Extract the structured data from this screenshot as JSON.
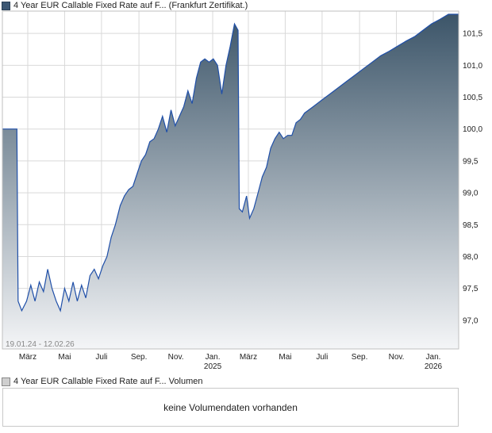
{
  "legend": {
    "price_label": "4 Year EUR Callable Fixed Rate auf F... (Frankfurt Zertifikat.)",
    "volume_label": "4 Year EUR Callable Fixed Rate auf F... Volumen"
  },
  "volume_panel": {
    "message": "keine Volumendaten vorhanden"
  },
  "range_label": "19.01.24 - 12.02.26",
  "colors": {
    "line": "#1f4fa8",
    "fill_top": "#3c5569",
    "fill_bottom": "#f4f5f7",
    "grid": "#d9d9d9"
  },
  "chart_data": {
    "type": "area",
    "xlabel": "",
    "ylabel": "",
    "ylim": [
      96.55,
      101.85
    ],
    "yticks": [
      "97,0",
      "97,5",
      "98,0",
      "98,5",
      "99,0",
      "99,5",
      "100,0",
      "100,5",
      "101,0",
      "101,5"
    ],
    "ytick_values": [
      97.0,
      97.5,
      98.0,
      98.5,
      99.0,
      99.5,
      100.0,
      100.5,
      101.0,
      101.5
    ],
    "xticks": [
      {
        "label": "März",
        "sub": "",
        "date": "2024-03-01"
      },
      {
        "label": "Mai",
        "sub": "",
        "date": "2024-05-01"
      },
      {
        "label": "Juli",
        "sub": "",
        "date": "2024-07-01"
      },
      {
        "label": "Sep.",
        "sub": "",
        "date": "2024-09-01"
      },
      {
        "label": "Nov.",
        "sub": "",
        "date": "2024-11-01"
      },
      {
        "label": "Jan.",
        "sub": "2025",
        "date": "2025-01-01"
      },
      {
        "label": "März",
        "sub": "",
        "date": "2025-03-01"
      },
      {
        "label": "Mai",
        "sub": "",
        "date": "2025-05-01"
      },
      {
        "label": "Juli",
        "sub": "",
        "date": "2025-07-01"
      },
      {
        "label": "Sep.",
        "sub": "",
        "date": "2025-09-01"
      },
      {
        "label": "Nov.",
        "sub": "",
        "date": "2025-11-01"
      },
      {
        "label": "Jan.",
        "sub": "2026",
        "date": "2026-01-01"
      }
    ],
    "xlim": [
      "2024-01-19",
      "2026-02-12"
    ],
    "series": [
      {
        "points": [
          [
            "2024-01-19",
            100.0
          ],
          [
            "2024-02-12",
            100.0
          ],
          [
            "2024-02-14",
            97.3
          ],
          [
            "2024-02-20",
            97.15
          ],
          [
            "2024-02-28",
            97.3
          ],
          [
            "2024-03-06",
            97.55
          ],
          [
            "2024-03-13",
            97.3
          ],
          [
            "2024-03-20",
            97.6
          ],
          [
            "2024-03-27",
            97.45
          ],
          [
            "2024-04-03",
            97.8
          ],
          [
            "2024-04-10",
            97.5
          ],
          [
            "2024-04-17",
            97.3
          ],
          [
            "2024-04-24",
            97.15
          ],
          [
            "2024-05-01",
            97.5
          ],
          [
            "2024-05-08",
            97.3
          ],
          [
            "2024-05-15",
            97.6
          ],
          [
            "2024-05-22",
            97.3
          ],
          [
            "2024-05-29",
            97.55
          ],
          [
            "2024-06-05",
            97.35
          ],
          [
            "2024-06-12",
            97.7
          ],
          [
            "2024-06-19",
            97.8
          ],
          [
            "2024-06-26",
            97.65
          ],
          [
            "2024-07-03",
            97.85
          ],
          [
            "2024-07-10",
            98.0
          ],
          [
            "2024-07-17",
            98.3
          ],
          [
            "2024-07-24",
            98.5
          ],
          [
            "2024-08-01",
            98.8
          ],
          [
            "2024-08-08",
            98.95
          ],
          [
            "2024-08-15",
            99.05
          ],
          [
            "2024-08-22",
            99.1
          ],
          [
            "2024-08-29",
            99.3
          ],
          [
            "2024-09-05",
            99.5
          ],
          [
            "2024-09-12",
            99.6
          ],
          [
            "2024-09-19",
            99.8
          ],
          [
            "2024-09-26",
            99.85
          ],
          [
            "2024-10-03",
            100.0
          ],
          [
            "2024-10-10",
            100.2
          ],
          [
            "2024-10-17",
            99.95
          ],
          [
            "2024-10-24",
            100.3
          ],
          [
            "2024-10-31",
            100.05
          ],
          [
            "2024-11-07",
            100.2
          ],
          [
            "2024-11-14",
            100.35
          ],
          [
            "2024-11-21",
            100.6
          ],
          [
            "2024-11-28",
            100.4
          ],
          [
            "2024-12-05",
            100.8
          ],
          [
            "2024-12-12",
            101.05
          ],
          [
            "2024-12-19",
            101.1
          ],
          [
            "2024-12-26",
            101.05
          ],
          [
            "2025-01-02",
            101.1
          ],
          [
            "2025-01-09",
            101.0
          ],
          [
            "2025-01-16",
            100.55
          ],
          [
            "2025-01-23",
            101.0
          ],
          [
            "2025-01-30",
            101.3
          ],
          [
            "2025-02-06",
            101.65
          ],
          [
            "2025-02-12",
            101.55
          ],
          [
            "2025-02-14",
            98.75
          ],
          [
            "2025-02-19",
            98.7
          ],
          [
            "2025-02-26",
            98.95
          ],
          [
            "2025-03-03",
            98.6
          ],
          [
            "2025-03-10",
            98.75
          ],
          [
            "2025-03-17",
            99.0
          ],
          [
            "2025-03-24",
            99.25
          ],
          [
            "2025-03-31",
            99.4
          ],
          [
            "2025-04-07",
            99.7
          ],
          [
            "2025-04-14",
            99.85
          ],
          [
            "2025-04-21",
            99.95
          ],
          [
            "2025-04-28",
            99.85
          ],
          [
            "2025-05-05",
            99.9
          ],
          [
            "2025-05-12",
            99.9
          ],
          [
            "2025-05-19",
            100.1
          ],
          [
            "2025-05-26",
            100.15
          ],
          [
            "2025-06-02",
            100.25
          ],
          [
            "2025-06-16",
            100.35
          ],
          [
            "2025-06-30",
            100.45
          ],
          [
            "2025-07-14",
            100.55
          ],
          [
            "2025-07-28",
            100.65
          ],
          [
            "2025-08-11",
            100.75
          ],
          [
            "2025-08-25",
            100.85
          ],
          [
            "2025-09-08",
            100.95
          ],
          [
            "2025-09-22",
            101.05
          ],
          [
            "2025-10-06",
            101.15
          ],
          [
            "2025-10-20",
            101.22
          ],
          [
            "2025-11-03",
            101.3
          ],
          [
            "2025-11-17",
            101.38
          ],
          [
            "2025-12-01",
            101.45
          ],
          [
            "2025-12-15",
            101.55
          ],
          [
            "2025-12-29",
            101.65
          ],
          [
            "2026-01-12",
            101.72
          ],
          [
            "2026-01-26",
            101.8
          ],
          [
            "2026-02-12",
            101.8
          ]
        ]
      }
    ]
  }
}
